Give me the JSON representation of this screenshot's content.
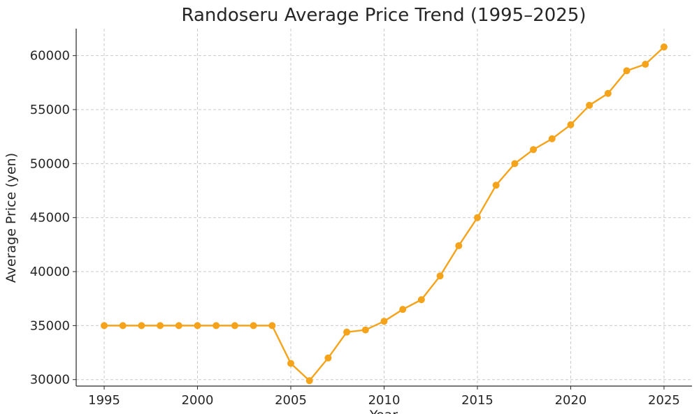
{
  "chart_data": {
    "type": "line",
    "title": "Randoseru Average Price Trend (1995–2025)",
    "xlabel": "Year",
    "ylabel": "Average Price (yen)",
    "xlim": [
      1993.5,
      2026.5
    ],
    "ylim": [
      29400,
      62500
    ],
    "xticks": [
      1995,
      2000,
      2005,
      2010,
      2015,
      2020,
      2025
    ],
    "yticks": [
      30000,
      35000,
      40000,
      45000,
      50000,
      55000,
      60000
    ],
    "grid": true,
    "line_color": "#f5a31a",
    "series": [
      {
        "x": [
          1995,
          1996,
          1997,
          1998,
          1999,
          2000,
          2001,
          2002,
          2003,
          2004,
          2005,
          2006,
          2007,
          2008,
          2009,
          2010,
          2011,
          2012,
          2013,
          2014,
          2015,
          2016,
          2017,
          2018,
          2019,
          2020,
          2021,
          2022,
          2023,
          2024,
          2025
        ],
        "values": [
          35000,
          35000,
          35000,
          35000,
          35000,
          35000,
          35000,
          35000,
          35000,
          35000,
          31500,
          29900,
          32000,
          34400,
          34600,
          35400,
          36500,
          37400,
          39600,
          42400,
          45000,
          48000,
          50000,
          51300,
          52300,
          53600,
          55400,
          56500,
          58600,
          59200,
          60800
        ]
      }
    ]
  }
}
